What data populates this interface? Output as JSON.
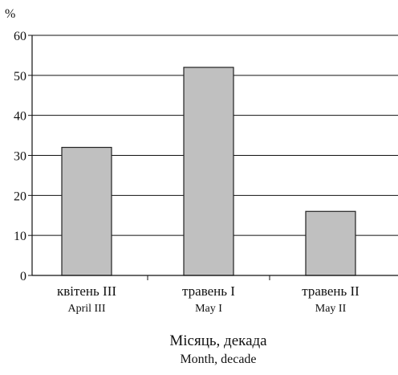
{
  "chart_data": {
    "type": "bar",
    "categories": [
      {
        "label": "квітень III",
        "sublabel": "April III"
      },
      {
        "label": "травень I",
        "sublabel": "May I"
      },
      {
        "label": "травень II",
        "sublabel": "May II"
      }
    ],
    "values": [
      32,
      52,
      16
    ],
    "ylim": [
      0,
      60
    ],
    "yticks": [
      0,
      10,
      20,
      30,
      40,
      50,
      60
    ],
    "y_unit_label": "%",
    "xlabel": "Місяць, декада",
    "xlabel_sub": "Month, decade",
    "grid": true,
    "colors": {
      "bar_fill": "#c0c0c0",
      "bar_stroke": "#222222",
      "axis": "#111111",
      "grid": "#111111"
    }
  }
}
